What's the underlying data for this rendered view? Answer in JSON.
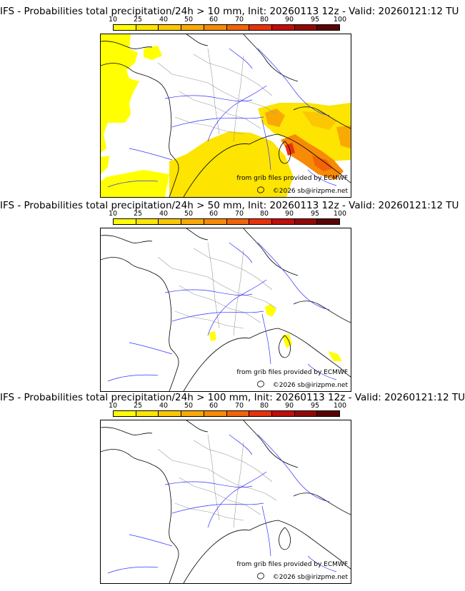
{
  "panels": [
    {
      "title": "IFS - Probabilities total precipitation/24h > 10 mm, Init: 20260113 12z - Valid: 20260121:12 TU",
      "threshold_mm": 10
    },
    {
      "title": "IFS - Probabilities total precipitation/24h > 50 mm, Init: 20260113 12z - Valid: 20260121:12 TU",
      "threshold_mm": 50
    },
    {
      "title": "IFS - Probabilities total precipitation/24h > 100 mm, Init: 20260113 12z - Valid: 20260121:12 TU",
      "threshold_mm": 100
    }
  ],
  "legend": {
    "ticks": [
      "10",
      "25",
      "40",
      "50",
      "60",
      "70",
      "80",
      "90",
      "95",
      "100"
    ],
    "colors": [
      "#ffff00",
      "#fde401",
      "#fbc702",
      "#f9a904",
      "#f78a06",
      "#f26408",
      "#e8320b",
      "#c00e0b",
      "#920806",
      "#5a0303"
    ]
  },
  "credits": {
    "source": "from grib files provided by ECMWF",
    "copyright": "©2026 sb@irizpme.net"
  }
}
